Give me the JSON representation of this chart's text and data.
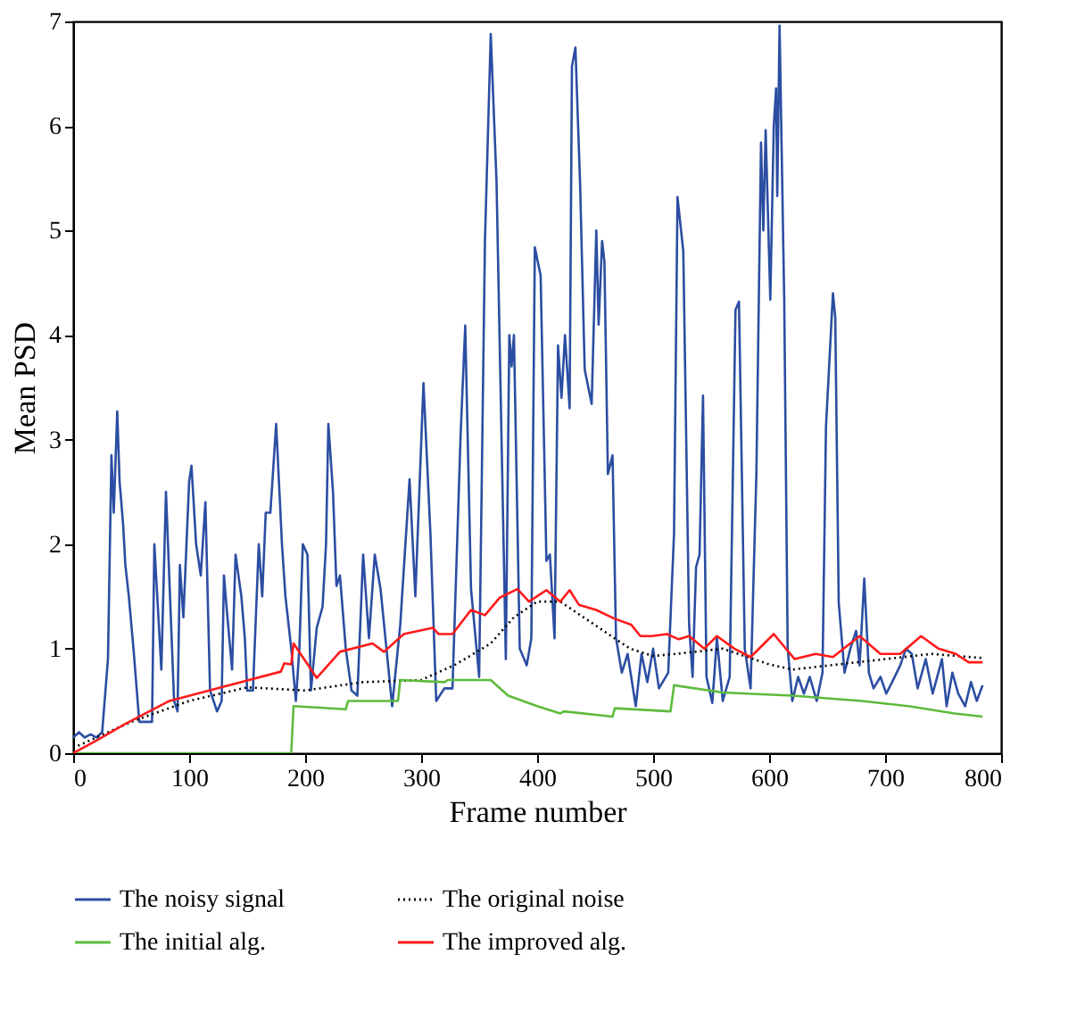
{
  "chart_data": {
    "type": "line",
    "xlabel": "Frame number",
    "ylabel": "Mean PSD",
    "xlim": [
      0,
      800
    ],
    "ylim": [
      0,
      7
    ],
    "xticks": [
      0,
      100,
      200,
      300,
      400,
      500,
      600,
      700,
      800
    ],
    "yticks": [
      0,
      1,
      2,
      3,
      4,
      5,
      6,
      7
    ],
    "grid": false,
    "marker": "none",
    "legend": "bottom",
    "series": [
      {
        "name": "The noisy signal",
        "color": "#2b4ea2",
        "line_style": "solid",
        "x": [
          0,
          5,
          10,
          15,
          20,
          25,
          30,
          33,
          35,
          38,
          40,
          43,
          45,
          48,
          52,
          57,
          68,
          70,
          76,
          80,
          87,
          90,
          92,
          95,
          100,
          102,
          106,
          110,
          114,
          118,
          124,
          128,
          130,
          133,
          137,
          140,
          145,
          148,
          150,
          155,
          160,
          163,
          166,
          170,
          175,
          180,
          183,
          185,
          188,
          192,
          195,
          198,
          202,
          205,
          210,
          215,
          218,
          220,
          224,
          227,
          230,
          235,
          240,
          245,
          250,
          255,
          260,
          265,
          275,
          282,
          290,
          295,
          302,
          308,
          313,
          320,
          327,
          334,
          338,
          343,
          350,
          355,
          360,
          365,
          373,
          376,
          378,
          380,
          385,
          391,
          395,
          398,
          403,
          408,
          411,
          415,
          418,
          421,
          424,
          428,
          430,
          433,
          437,
          441,
          447,
          451,
          453,
          456,
          458,
          461,
          465,
          468,
          473,
          478,
          485,
          490,
          495,
          500,
          505,
          513,
          518,
          521,
          526,
          531,
          534,
          537,
          540,
          543,
          546,
          551,
          555,
          560,
          566,
          571,
          574,
          579,
          584,
          589,
          593,
          595,
          597,
          601,
          604,
          606,
          607,
          609,
          613,
          616,
          620,
          625,
          630,
          635,
          641,
          646,
          649,
          655,
          657,
          660,
          665,
          670,
          675,
          678,
          682,
          686,
          690,
          696,
          701,
          706,
          713,
          718,
          723,
          728,
          735,
          741,
          749,
          753,
          758,
          763,
          769,
          774,
          779,
          784
        ],
        "values": [
          0.15,
          0.2,
          0.15,
          0.18,
          0.15,
          0.2,
          0.9,
          2.85,
          2.3,
          3.27,
          2.6,
          2.2,
          1.8,
          1.5,
          1.0,
          0.3,
          0.3,
          2.0,
          0.8,
          2.5,
          0.5,
          0.4,
          1.8,
          1.3,
          2.6,
          2.75,
          2.0,
          1.7,
          2.4,
          0.6,
          0.4,
          0.5,
          1.7,
          1.3,
          0.8,
          1.9,
          1.5,
          1.1,
          0.6,
          0.6,
          2.0,
          1.5,
          2.3,
          2.3,
          3.15,
          2.0,
          1.5,
          1.3,
          1.0,
          0.5,
          1.0,
          2.0,
          1.9,
          0.6,
          1.2,
          1.4,
          2.0,
          3.15,
          2.5,
          1.6,
          1.7,
          1.0,
          0.6,
          0.55,
          1.9,
          1.1,
          1.9,
          1.57,
          0.45,
          1.23,
          2.62,
          1.5,
          3.54,
          2.1,
          0.5,
          0.62,
          0.62,
          3.04,
          4.09,
          1.57,
          0.73,
          4.9,
          6.88,
          5.46,
          0.9,
          4.0,
          3.7,
          4.0,
          1.0,
          0.84,
          1.1,
          4.84,
          4.57,
          1.84,
          1.9,
          1.1,
          3.9,
          3.4,
          4.0,
          3.3,
          6.57,
          6.75,
          5.46,
          3.67,
          3.34,
          5.0,
          4.1,
          4.9,
          4.7,
          2.67,
          2.85,
          1.1,
          0.77,
          0.95,
          0.45,
          0.95,
          0.68,
          1.0,
          0.62,
          0.77,
          2.1,
          5.32,
          4.8,
          1.23,
          0.73,
          1.78,
          1.9,
          3.42,
          0.73,
          0.48,
          1.1,
          0.5,
          0.73,
          4.24,
          4.32,
          1.0,
          0.62,
          2.67,
          5.84,
          5.0,
          5.96,
          4.34,
          6.0,
          6.36,
          5.33,
          6.96,
          4.34,
          1.0,
          0.5,
          0.73,
          0.57,
          0.73,
          0.5,
          0.77,
          3.12,
          4.4,
          4.17,
          1.44,
          0.77,
          1.0,
          1.17,
          0.84,
          1.67,
          0.77,
          0.62,
          0.73,
          0.57,
          0.68,
          0.84,
          1.0,
          0.95,
          0.62,
          0.9,
          0.57,
          0.9,
          0.45,
          0.77,
          0.57,
          0.45,
          0.68,
          0.5,
          0.65
        ]
      },
      {
        "name": "The original noise",
        "color": "#000000",
        "line_style": "dotted",
        "x": [
          0,
          50,
          100,
          150,
          200,
          250,
          300,
          330,
          360,
          380,
          400,
          420,
          440,
          460,
          480,
          500,
          520,
          560,
          600,
          620,
          660,
          700,
          740,
          784
        ],
        "values": [
          0.05,
          0.3,
          0.5,
          0.63,
          0.6,
          0.68,
          0.7,
          0.85,
          1.05,
          1.3,
          1.45,
          1.45,
          1.3,
          1.15,
          1.0,
          0.93,
          0.95,
          1.0,
          0.85,
          0.8,
          0.85,
          0.9,
          0.95,
          0.91
        ]
      },
      {
        "name": "The initial alg.",
        "color": "#5dbb3c",
        "line_style": "solid",
        "x": [
          0,
          188,
          190,
          235,
          237,
          280,
          282,
          320,
          323,
          360,
          375,
          400,
          420,
          423,
          465,
          467,
          515,
          518,
          560,
          620,
          680,
          720,
          760,
          784
        ],
        "values": [
          0,
          0,
          0.45,
          0.42,
          0.5,
          0.5,
          0.7,
          0.68,
          0.7,
          0.7,
          0.55,
          0.45,
          0.38,
          0.4,
          0.35,
          0.43,
          0.4,
          0.65,
          0.58,
          0.55,
          0.5,
          0.45,
          0.38,
          0.35
        ]
      },
      {
        "name": "The improved alg.",
        "color": "#ff1a1a",
        "line_style": "solid",
        "x": [
          0,
          20,
          45,
          83,
          131,
          179,
          182,
          188,
          190,
          210,
          230,
          258,
          268,
          285,
          310,
          315,
          327,
          343,
          355,
          368,
          383,
          393,
          408,
          420,
          428,
          436,
          451,
          466,
          481,
          489,
          499,
          512,
          522,
          531,
          544,
          555,
          570,
          584,
          604,
          622,
          640,
          655,
          678,
          696,
          713,
          731,
          746,
          761,
          772,
          784
        ],
        "values": [
          0,
          0.12,
          0.28,
          0.5,
          0.64,
          0.78,
          0.86,
          0.85,
          1.05,
          0.72,
          0.97,
          1.05,
          0.97,
          1.14,
          1.2,
          1.14,
          1.14,
          1.37,
          1.32,
          1.49,
          1.57,
          1.45,
          1.56,
          1.45,
          1.56,
          1.42,
          1.37,
          1.29,
          1.23,
          1.12,
          1.12,
          1.14,
          1.09,
          1.12,
          1.0,
          1.12,
          1.0,
          0.92,
          1.14,
          0.9,
          0.95,
          0.92,
          1.12,
          0.95,
          0.95,
          1.12,
          1.0,
          0.95,
          0.87,
          0.87
        ]
      }
    ]
  }
}
